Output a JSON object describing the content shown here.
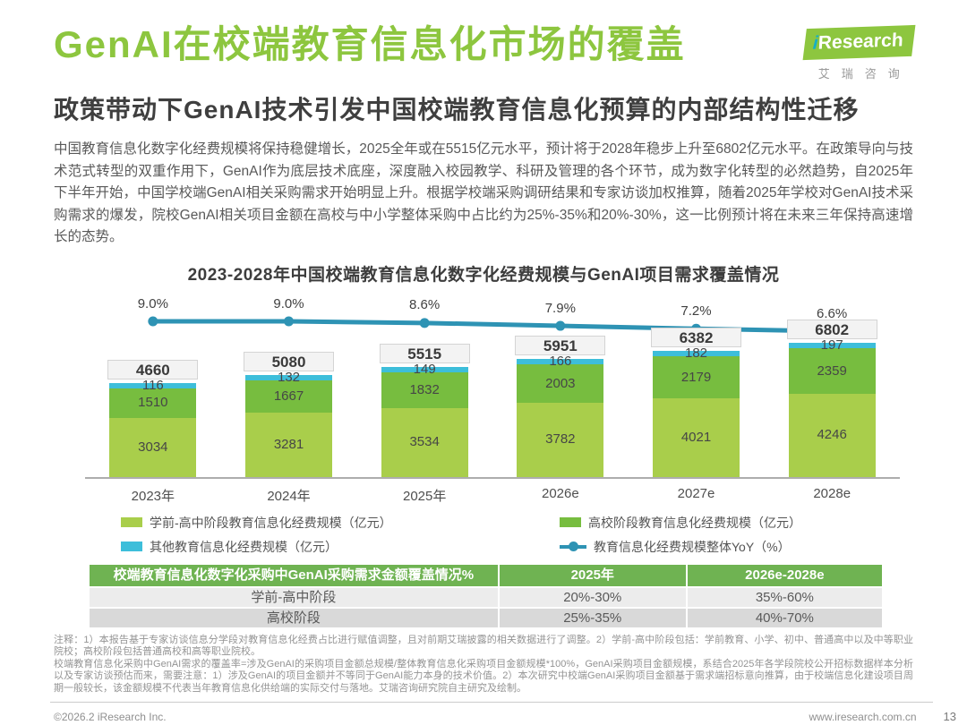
{
  "header": {
    "title": "GenAI在校端教育信息化市场的覆盖",
    "subtitle": "政策带动下GenAI技术引发中国校端教育信息化预算的内部结构性迁移",
    "logo": {
      "brand_i": "i",
      "brand_rest": "Research",
      "brand_cn": "艾瑞咨询"
    }
  },
  "intro": {
    "text": "中国教育信息化数字化经费规模将保持稳健增长，2025全年或在5515亿元水平，预计将于2028年稳步上升至6802亿元水平。在政策导向与技术范式转型的双重作用下，GenAI作为底层技术底座，深度融入校园教学、科研及管理的各个环节，成为数字化转型的必然趋势，自2025年下半年开始，中国学校端GenAI相关采购需求开始明显上升。根据学校端采购调研结果和专家访谈加权推算，随着2025年学校对GenAI技术采购需求的爆发，院校GenAI相关项目金额在高校与中小学整体采购中占比约为25%-35%和20%-30%，这一比例预计将在未来三年保持高速增长的态势。"
  },
  "chart_data": {
    "type": "bar",
    "stacked": true,
    "title": "2023-2028年中国校端教育信息化数字化经费规模与GenAI项目需求覆盖情况",
    "unit": "亿元",
    "categories": [
      "2023年",
      "2024年",
      "2025年",
      "2026e",
      "2027e",
      "2028e"
    ],
    "series": [
      {
        "name": "学前-高中阶段教育信息化经费规模（亿元）",
        "color": "#A9CE4B",
        "values": [
          3034,
          3281,
          3534,
          3782,
          4021,
          4246
        ]
      },
      {
        "name": "高校阶段教育信息化经费规模（亿元）",
        "color": "#77BD3F",
        "values": [
          1510,
          1667,
          1832,
          2003,
          2179,
          2359
        ]
      },
      {
        "name": "其他教育信息化经费规模（亿元）",
        "color": "#3DBEDA",
        "values": [
          116,
          132,
          149,
          166,
          182,
          197
        ]
      }
    ],
    "totals": [
      4660,
      5080,
      5515,
      5951,
      6382,
      6802
    ],
    "yoy": {
      "name": "教育信息化经费规模整体YoY（%）",
      "color": "#2E93B4",
      "values": [
        9.0,
        9.0,
        8.6,
        7.9,
        7.2,
        6.6
      ]
    },
    "legend_position": "bottom",
    "grid": false
  },
  "table": {
    "header": [
      "校端教育信息化数字化采购中GenAI采购需求金额覆盖情况%",
      "2025年",
      "2026e-2028e"
    ],
    "rows": [
      [
        "学前-高中阶段",
        "20%-30%",
        "35%-60%"
      ],
      [
        "高校阶段",
        "25%-35%",
        "40%-70%"
      ]
    ],
    "header_bg": "#6FB352"
  },
  "notes": {
    "para1": "注释：1）本报告基于专家访谈信息分学段对教育信息化经费占比进行赋值调整，且对前期艾瑞披露的相关数据进行了调整。2）学前-高中阶段包括：学前教育、小学、初中、普通高中以及中等职业院校；高校阶段包括普通高校和高等职业院校。",
    "para2": "校端教育信息化采购中GenAI需求的覆盖率=涉及GenAI的采购项目金额总规模/整体教育信息化采购项目金额规模*100%，GenAI采购项目金额规模，系结合2025年各学段院校公开招标数据样本分析以及专家访谈预估而来，需要注意：1）涉及GenAI的项目金额并不等同于GenAI能力本身的技术价值。2）本次研究中校端GenAI采购项目金额基于需求端招标意向推算，由于校端信息化建设项目周期一般较长，该金额规模不代表当年教育信息化供给端的实际交付与落地。艾瑞咨询研究院自主研究及绘制。"
  },
  "footer": {
    "copyright": "©2026.2 iResearch Inc.",
    "website": "www.iresearch.com.cn",
    "page": "13"
  },
  "colors": {
    "brand_green": "#8DC63F",
    "logo_i_teal": "#16AFC6",
    "table_header_green": "#6FB352",
    "yoy_line": "#2E93B4"
  }
}
